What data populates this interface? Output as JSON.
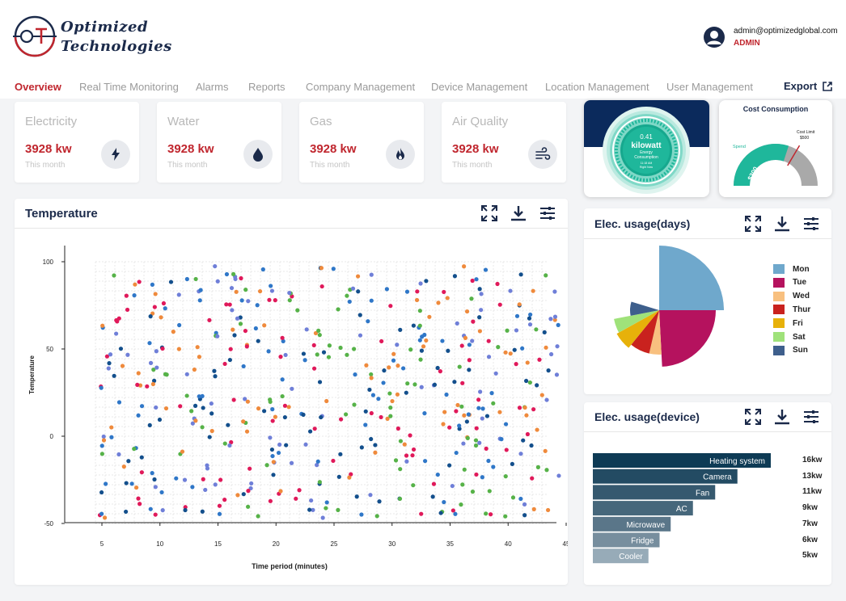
{
  "header": {
    "brand_line1": "Optimized",
    "brand_line2": "Technologies",
    "user_email": "admin@optimizedglobal.com",
    "user_role": "ADMIN"
  },
  "nav": {
    "items": [
      "Overview",
      "Real Time Monitoring",
      "Alarms",
      "Reports",
      "Company Management",
      "Device Management",
      "Location Management",
      "User Management"
    ],
    "export_label": "Export"
  },
  "kpis": [
    {
      "title": "Electricity",
      "value": "3928 kw",
      "sub": "This month",
      "icon": "lightning-icon"
    },
    {
      "title": "Water",
      "value": "3928 kw",
      "sub": "This month",
      "icon": "water-drop-icon"
    },
    {
      "title": "Gas",
      "value": "3928 kw",
      "sub": "This month",
      "icon": "flame-icon"
    },
    {
      "title": "Air Quality",
      "value": "3928 kw",
      "sub": "This month",
      "icon": "wind-icon"
    }
  ],
  "energy_gauge": {
    "value": "0.41",
    "unit": "kilowatt",
    "label_line1": "Energy",
    "label_line2": "Consumption",
    "time": "11:18 AM",
    "period": "Right Now"
  },
  "cost_gauge": {
    "title": "Cost Consumption",
    "spend_label": "Spend",
    "spend_value": "$300",
    "limit_label": "Cost Limit",
    "limit_value": "$500",
    "spend": 300,
    "limit": 500
  },
  "temperature_panel": {
    "title": "Temperature",
    "xlabel": "Time period (minutes)",
    "ylabel": "Temperature"
  },
  "days_panel": {
    "title": "Elec. usage(days)"
  },
  "device_panel": {
    "title": "Elec. usage(device)"
  },
  "colors": {
    "brand_red": "#c0262e",
    "navy": "#1b2a4a",
    "teal": "#1fb79b"
  },
  "chart_data": [
    {
      "type": "scatter",
      "title": "",
      "xlabel": "Time period (minutes)",
      "ylabel": "Temperature",
      "xlim": [
        4,
        45
      ],
      "ylim": [
        -50,
        100
      ],
      "xticks": [
        5,
        10,
        15,
        20,
        25,
        30,
        35,
        40,
        45
      ],
      "yticks": [
        -50,
        0,
        50,
        100
      ],
      "grid": true,
      "point_count": 520,
      "series_colors": [
        "#e0195a",
        "#2f77c8",
        "#ef8a3c",
        "#56b248",
        "#6f7fd8",
        "#134f8c"
      ]
    },
    {
      "type": "pie",
      "legend_position": "right",
      "categories": [
        "Mon",
        "Tue",
        "Wed",
        "Thur",
        "Fri",
        "Sat",
        "Sun"
      ],
      "values": [
        25,
        18,
        4,
        6,
        5,
        4,
        4
      ],
      "colors": [
        "#6fa8cc",
        "#b5125e",
        "#f8c07f",
        "#c9221e",
        "#e7b10a",
        "#9fe27a",
        "#3e5f8c"
      ]
    },
    {
      "type": "bar",
      "orientation": "horizontal",
      "categories": [
        "Heating system",
        "Camera",
        "Fan",
        "AC",
        "Microwave",
        "Fridge",
        "Cooler"
      ],
      "values": [
        16,
        13,
        11,
        9,
        7,
        6,
        5
      ],
      "value_labels": [
        "16kw",
        "13kw",
        "11kw",
        "9kw",
        "7kw",
        "6kw",
        "5kw"
      ],
      "unit": "kw"
    }
  ]
}
